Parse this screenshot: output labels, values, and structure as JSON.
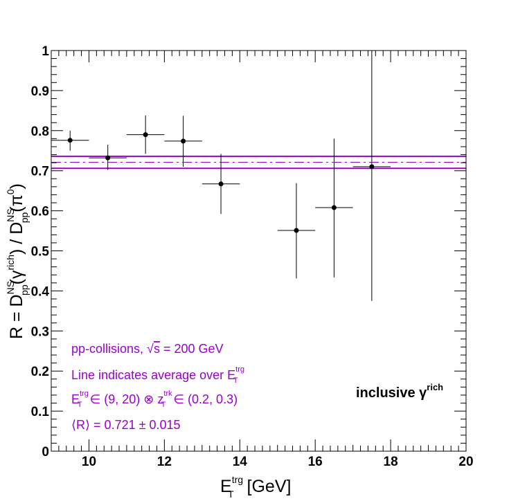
{
  "chart_data": {
    "type": "scatter",
    "xlim": [
      9,
      20
    ],
    "ylim": [
      0,
      1
    ],
    "x_ticks": [
      "10",
      "12",
      "14",
      "16",
      "18",
      "20"
    ],
    "y_ticks": [
      "0",
      "0.1",
      "0.2",
      "0.3",
      "0.4",
      "0.5",
      "0.6",
      "0.7",
      "0.8",
      "0.9",
      "1"
    ],
    "grid": false,
    "xlabel": {
      "main": "E",
      "sup": "trg",
      "sub": "T",
      "unit": " [GeV]"
    },
    "ylabel": {
      "p1": "R = D",
      "p1_sup": "NS",
      "p1_sub": "pp",
      "p2": "(γ",
      "p2_sup": "rich",
      "p3": ") / D",
      "p3_sup": "NS",
      "p3_sub": "pp",
      "p4": "(π",
      "p4_sup": "0",
      "p5": ")"
    },
    "points": [
      {
        "x": 9.5,
        "xerr": 0.5,
        "y": 0.776,
        "yerr_low": 0.026,
        "yerr_high": 0.024
      },
      {
        "x": 10.5,
        "xerr": 0.5,
        "y": 0.732,
        "yerr_low": 0.03,
        "yerr_high": 0.033
      },
      {
        "x": 11.5,
        "xerr": 0.5,
        "y": 0.79,
        "yerr_low": 0.048,
        "yerr_high": 0.048
      },
      {
        "x": 12.5,
        "xerr": 0.5,
        "y": 0.774,
        "yerr_low": 0.064,
        "yerr_high": 0.063
      },
      {
        "x": 13.5,
        "xerr": 0.5,
        "y": 0.667,
        "yerr_low": 0.075,
        "yerr_high": 0.075
      },
      {
        "x": 15.5,
        "xerr": 0.5,
        "y": 0.551,
        "yerr_low": 0.12,
        "yerr_high": 0.118
      },
      {
        "x": 16.5,
        "xerr": 0.5,
        "y": 0.608,
        "yerr_low": 0.174,
        "yerr_high": 0.172
      },
      {
        "x": 17.5,
        "xerr": 0.5,
        "y": 0.71,
        "yerr_low": 0.335,
        "yerr_high": 0.29
      }
    ],
    "average": {
      "value": 0.721,
      "err": 0.015
    },
    "annotations": {
      "line1_pre": "pp-collisions, ",
      "line1_sqrt": "√",
      "line1_s": "s",
      "line1_post": " = 200 GeV",
      "line2_pre": "Line indicates average over E",
      "line2_sup": "trg",
      "line2_sub": "T",
      "line3_a": "E",
      "line3_a_sup": "trg",
      "line3_a_sub": "T",
      "line3_b": " ∈ (9, 20) ⊗ z",
      "line3_b_sup": "trk",
      "line3_b_sub": "T",
      "line3_c": " ∈ (0.2, 0.3)",
      "line4": "⟨R⟩ = 0.721 ± 0.015"
    },
    "tag": {
      "text": "inclusive γ",
      "sup": "rich"
    },
    "colors": {
      "data": "#000000",
      "average": "#9900cc",
      "text_annotation": "#9900cc"
    }
  }
}
